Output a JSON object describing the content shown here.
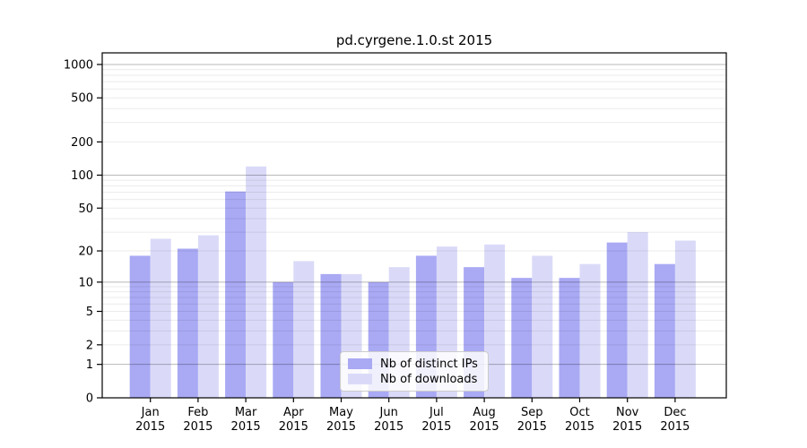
{
  "chart_data": {
    "type": "bar",
    "title": "pd.cyrgene.1.0.st 2015",
    "categories": [
      "Jan",
      "Feb",
      "Mar",
      "Apr",
      "May",
      "Jun",
      "Jul",
      "Aug",
      "Sep",
      "Oct",
      "Nov",
      "Dec"
    ],
    "category_year": "2015",
    "series": [
      {
        "name": "Nb of distinct IPs",
        "color": "#a9a9f4",
        "values": [
          18,
          21,
          71,
          10,
          12,
          10,
          18,
          14,
          11,
          11,
          24,
          15
        ]
      },
      {
        "name": "Nb of downloads",
        "color": "#dadaf8",
        "values": [
          26,
          28,
          120,
          16,
          12,
          14,
          22,
          23,
          18,
          15,
          30,
          25
        ]
      }
    ],
    "yscale": "log1p",
    "ylim": [
      0,
      1270
    ],
    "yticks": [
      0,
      1,
      2,
      5,
      10,
      20,
      50,
      100,
      200,
      500,
      1000
    ],
    "grid": true,
    "legend_position": "bottom-center",
    "axis_color": "#000000",
    "grid_major_color": "rgba(0,0,0,0.28)",
    "grid_minor_color": "rgba(0,0,0,0.08)"
  }
}
